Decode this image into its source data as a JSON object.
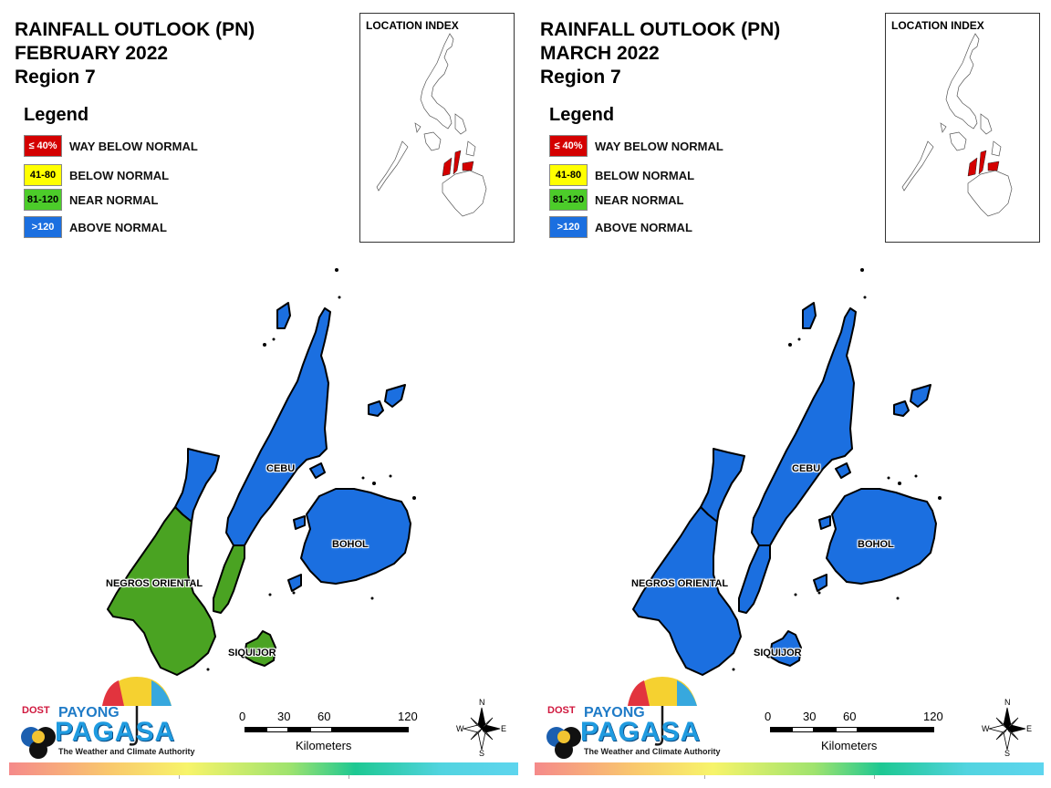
{
  "panels": [
    {
      "id": "february",
      "title": [
        "RAINFALL OUTLOOK (PN)",
        "FEBRUARY 2022",
        "Region 7"
      ],
      "index_title": "LOCATION INDEX",
      "provinces": {
        "cebu_north": "#1b6fe0",
        "cebu_south": "#4aa322",
        "negros_north": "#1b6fe0",
        "negros_south": "#4aa322",
        "bohol": "#1b6fe0",
        "siquijor": "#4aa322",
        "islets": "#1b6fe0"
      },
      "labels": {
        "cebu": "CEBU",
        "bohol": "BOHOL",
        "negros": "NEGROS ORIENTAL",
        "siquijor": "SIQUIJOR"
      }
    },
    {
      "id": "march",
      "title": [
        "RAINFALL OUTLOOK (PN)",
        "MARCH 2022",
        "Region 7"
      ],
      "index_title": "LOCATION INDEX",
      "provinces": {
        "cebu_north": "#1b6fe0",
        "cebu_south": "#1b6fe0",
        "negros_north": "#1b6fe0",
        "negros_south": "#1b6fe0",
        "bohol": "#1b6fe0",
        "siquijor": "#1b6fe0",
        "islets": "#1b6fe0"
      },
      "labels": {
        "cebu": "CEBU",
        "bohol": "BOHOL",
        "negros": "NEGROS ORIENTAL",
        "siquijor": "SIQUIJOR"
      }
    }
  ],
  "legend": {
    "title": "Legend",
    "items": [
      {
        "swatch": "≤ 40%",
        "label": "WAY BELOW NORMAL",
        "color": "#d40000",
        "text_color": "#ffffff"
      },
      {
        "swatch": "41-80",
        "label": "BELOW NORMAL",
        "color": "#ffff00",
        "text_color": "#000000"
      },
      {
        "swatch": "81-120",
        "label": "NEAR NORMAL",
        "color": "#4ccc2a",
        "text_color": "#000000"
      },
      {
        "swatch": ">120",
        "label": "ABOVE NORMAL",
        "color": "#1b6fe0",
        "text_color": "#ffffff"
      }
    ]
  },
  "scale_bar": {
    "ticks": [
      "0",
      "30",
      "60",
      "120"
    ],
    "units": "Kilometers"
  },
  "compass": {
    "n": "N",
    "s": "S",
    "e": "E",
    "w": "W"
  },
  "logo": {
    "dost": "DOST",
    "payong": "PAYONG",
    "pagasa": "PAGASA",
    "tagline": "The Weather and Climate Authority"
  }
}
